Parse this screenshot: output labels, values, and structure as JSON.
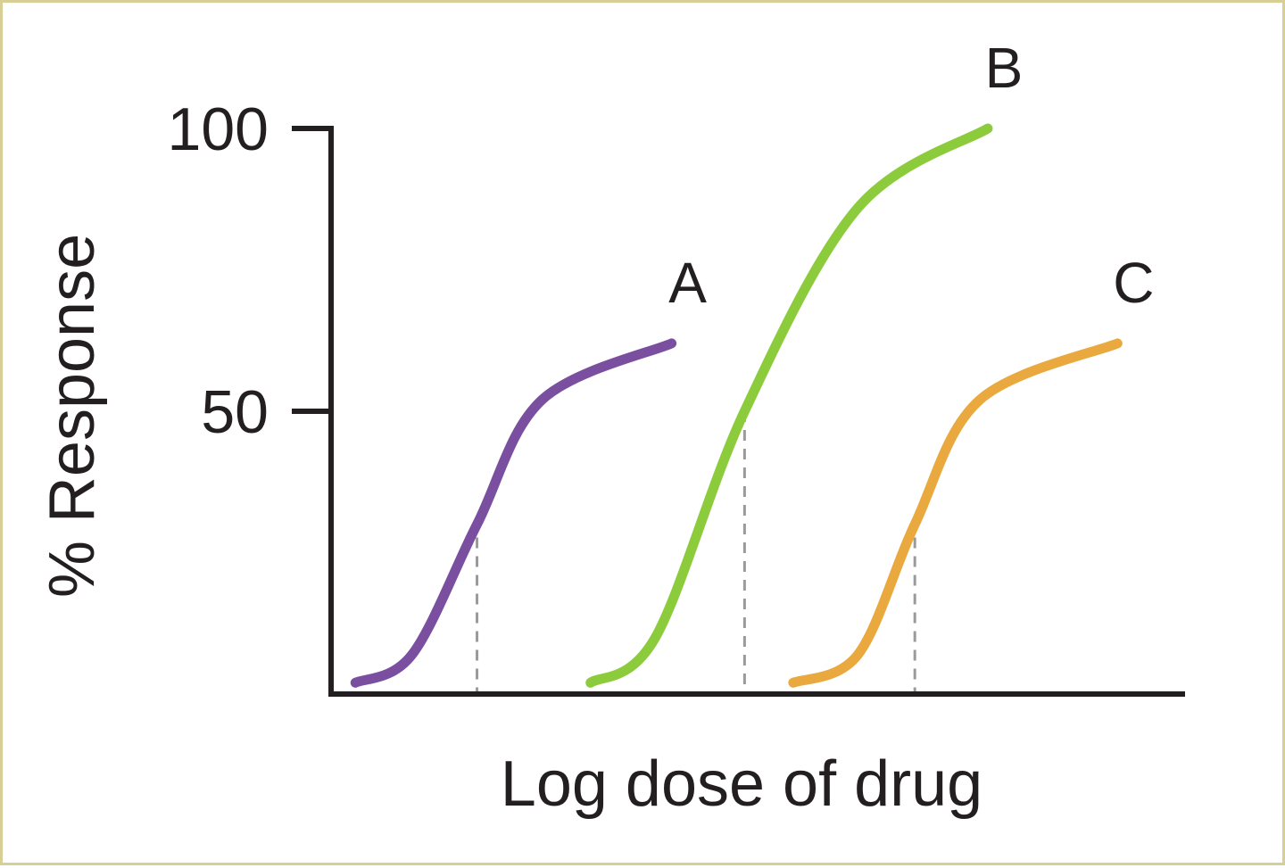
{
  "chart_data": {
    "type": "line",
    "xlabel": "Log dose of drug",
    "ylabel": "% Response",
    "ylim": [
      0,
      100
    ],
    "yticks": [
      50,
      100
    ],
    "ytick_labels": [
      "50",
      "100"
    ],
    "grid": false,
    "series": [
      {
        "name": "A",
        "color": "#7b4fa0",
        "values": [
          {
            "x": 0.3,
            "y": 2
          },
          {
            "x": 1.0,
            "y": 7
          },
          {
            "x": 1.8,
            "y": 30
          },
          {
            "x": 2.6,
            "y": 52
          },
          {
            "x": 4.2,
            "y": 62
          }
        ],
        "ec50_x": 1.8,
        "ec50_y": 31
      },
      {
        "name": "B",
        "color": "#8ccc3c",
        "values": [
          {
            "x": 3.2,
            "y": 2
          },
          {
            "x": 4.0,
            "y": 10
          },
          {
            "x": 5.1,
            "y": 50
          },
          {
            "x": 6.5,
            "y": 86
          },
          {
            "x": 8.1,
            "y": 100
          }
        ],
        "ec50_x": 5.1,
        "ec50_y": 50
      },
      {
        "name": "C",
        "color": "#e9a93f",
        "values": [
          {
            "x": 5.7,
            "y": 2
          },
          {
            "x": 6.5,
            "y": 7
          },
          {
            "x": 7.2,
            "y": 30
          },
          {
            "x": 8.0,
            "y": 52
          },
          {
            "x": 9.7,
            "y": 62
          }
        ],
        "ec50_x": 7.2,
        "ec50_y": 31
      }
    ]
  }
}
